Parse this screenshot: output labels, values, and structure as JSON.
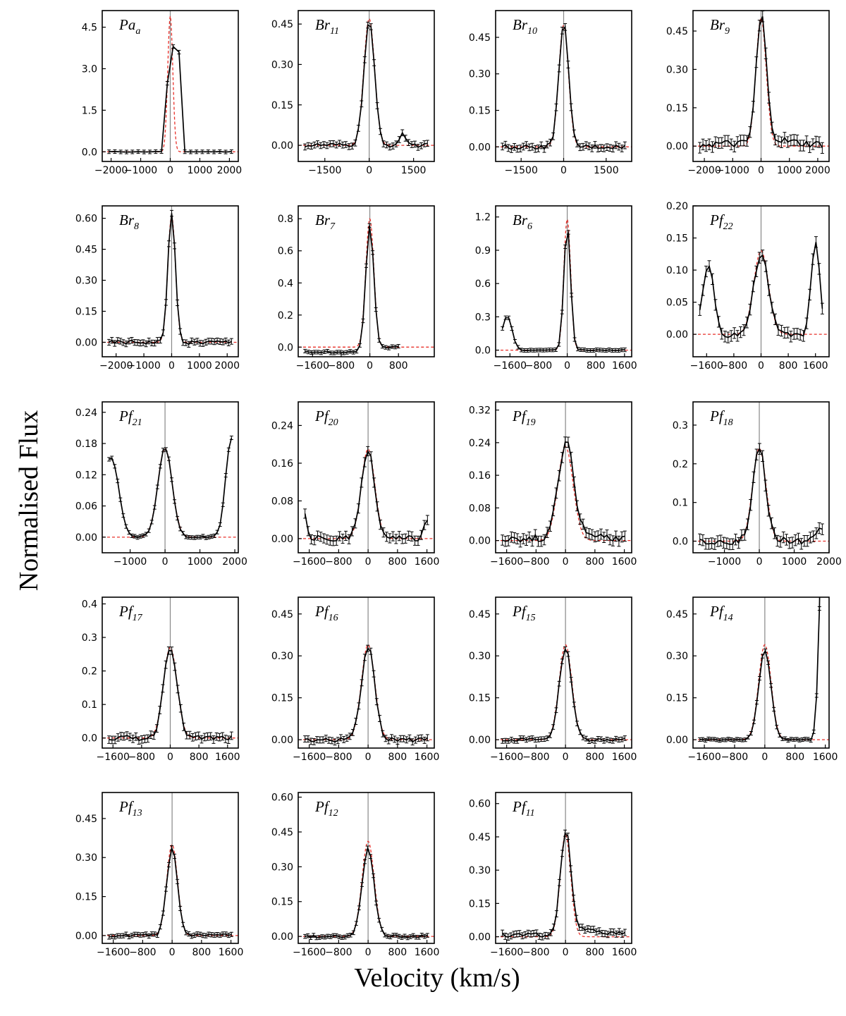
{
  "axis_labels": {
    "ylabel": "Normalised Flux",
    "xlabel": "Velocity (km/s)"
  },
  "colors": {
    "observed": "#000000",
    "fit": "#e8302a",
    "center_line": "#888888",
    "axes": "#000000"
  },
  "chart_data": [
    {
      "type": "line",
      "label_main": "Pa",
      "label_sub": "a",
      "xlim": [
        -2300,
        2300
      ],
      "ylim": [
        -0.35,
        5.1
      ],
      "xticks": [
        -2000,
        -1000,
        0,
        1000,
        2000
      ],
      "xtick_labels": [
        "−2000",
        "−1000",
        "0",
        "1000",
        "2000"
      ],
      "yticks": [
        0,
        1.5,
        3,
        4.5
      ],
      "ytick_labels": [
        "0.0",
        "1.5",
        "3.0",
        "4.5"
      ],
      "peak": 4.85,
      "fwhm": 200,
      "obs_peak": 3.8,
      "obs_mid": 3.6,
      "fit_peak": 4.9,
      "n": 22,
      "noise": 0.01,
      "series": [
        {
          "name": "Observed"
        },
        {
          "name": "Fit"
        }
      ]
    },
    {
      "type": "line",
      "label_main": "Br",
      "label_sub": "11",
      "xlim": [
        -2400,
        2200
      ],
      "ylim": [
        -0.06,
        0.5
      ],
      "xticks": [
        -1500,
        0,
        1500
      ],
      "xtick_labels": [
        "−1500",
        "0",
        "1500"
      ],
      "yticks": [
        0,
        0.15,
        0.3,
        0.45
      ],
      "ytick_labels": [
        "0.00",
        "0.15",
        "0.30",
        "0.45"
      ],
      "peak": 0.46,
      "fwhm": 420,
      "fit_peak": 0.47,
      "n": 40,
      "noise": 0.008,
      "bump": [
        1150,
        0.04
      ],
      "series": [
        {
          "name": "Observed"
        },
        {
          "name": "Fit"
        }
      ]
    },
    {
      "type": "line",
      "label_main": "Br",
      "label_sub": "10",
      "xlim": [
        -2400,
        2400
      ],
      "ylim": [
        -0.06,
        0.56
      ],
      "xticks": [
        -1500,
        0,
        1500
      ],
      "xtick_labels": [
        "−1500",
        "0",
        "1500"
      ],
      "yticks": [
        0,
        0.15,
        0.3,
        0.45
      ],
      "ytick_labels": [
        "0.00",
        "0.15",
        "0.30",
        "0.45"
      ],
      "peak": 0.51,
      "fwhm": 400,
      "fit_peak": 0.5,
      "n": 42,
      "noise": 0.01,
      "series": [
        {
          "name": "Observed"
        },
        {
          "name": "Fit"
        }
      ]
    },
    {
      "type": "line",
      "label_main": "Br",
      "label_sub": "9",
      "xlim": [
        -2400,
        2400
      ],
      "ylim": [
        -0.06,
        0.53
      ],
      "xticks": [
        -2000,
        -1000,
        0,
        1000,
        2000
      ],
      "xtick_labels": [
        "−2000",
        "−1000",
        "0",
        "1000",
        "2000"
      ],
      "yticks": [
        0,
        0.15,
        0.3,
        0.45
      ],
      "ytick_labels": [
        "0.00",
        "0.15",
        "0.30",
        "0.45"
      ],
      "peak": 0.48,
      "fwhm": 420,
      "fit_peak": 0.5,
      "n": 40,
      "noise": 0.015,
      "wing": [
        0.05,
        900
      ],
      "series": [
        {
          "name": "Observed"
        },
        {
          "name": "Fit"
        }
      ]
    },
    {
      "type": "line",
      "label_main": "Br",
      "label_sub": "8",
      "xlim": [
        -2500,
        2400
      ],
      "ylim": [
        -0.07,
        0.66
      ],
      "xticks": [
        -2000,
        -1000,
        0,
        1000,
        2000
      ],
      "xtick_labels": [
        "−2000",
        "−1000",
        "0",
        "1000",
        "2000"
      ],
      "yticks": [
        0,
        0.15,
        0.3,
        0.45,
        0.6
      ],
      "ytick_labels": [
        "0.00",
        "0.15",
        "0.30",
        "0.45",
        "0.60"
      ],
      "peak": 0.62,
      "fwhm": 320,
      "fit_peak": 0.61,
      "n": 44,
      "noise": 0.01,
      "series": [
        {
          "name": "Observed"
        },
        {
          "name": "Fit"
        }
      ]
    },
    {
      "type": "line",
      "label_main": "Br",
      "label_sub": "7",
      "xlim": [
        -2000,
        1800
      ],
      "ylim": [
        -0.06,
        0.88
      ],
      "xticks": [
        -1600,
        -800,
        0,
        800
      ],
      "xtick_labels": [
        "−1600",
        "−800",
        "0",
        "800"
      ],
      "yticks": [
        0,
        0.2,
        0.4,
        0.6,
        0.8
      ],
      "ytick_labels": [
        "0.0",
        "0.2",
        "0.4",
        "0.6",
        "0.8"
      ],
      "peak": 0.76,
      "fwhm": 260,
      "fit_peak": 0.8,
      "n": 30,
      "noise": 0.006,
      "xmax_obs": 800,
      "baseline": -0.03,
      "series": [
        {
          "name": "Observed"
        },
        {
          "name": "Fit"
        }
      ]
    },
    {
      "type": "line",
      "label_main": "Br",
      "label_sub": "6",
      "xlim": [
        -2000,
        1800
      ],
      "ylim": [
        -0.06,
        1.3
      ],
      "xticks": [
        -1600,
        -800,
        0,
        800,
        1600
      ],
      "xtick_labels": [
        "−1600",
        "−800",
        "0",
        "800",
        "1600"
      ],
      "yticks": [
        0,
        0.3,
        0.6,
        0.9,
        1.2
      ],
      "ytick_labels": [
        "0.0",
        "0.3",
        "0.6",
        "0.9",
        "1.2"
      ],
      "peak": 1.12,
      "fwhm": 220,
      "fit_peak": 1.18,
      "n": 40,
      "noise": 0.004,
      "side_peaks": [
        [
          -1680,
          0.31,
          320
        ]
      ],
      "series": [
        {
          "name": "Observed"
        },
        {
          "name": "Fit"
        }
      ]
    },
    {
      "type": "line",
      "label_main": "Pf",
      "label_sub": "22",
      "xlim": [
        -2000,
        2000
      ],
      "ylim": [
        -0.035,
        0.2
      ],
      "xticks": [
        -1600,
        -800,
        0,
        800,
        1600
      ],
      "xtick_labels": [
        "−1600",
        "−800",
        "0",
        "800",
        "1600"
      ],
      "yticks": [
        0,
        0.05,
        0.1,
        0.15,
        0.2
      ],
      "ytick_labels": [
        "0.00",
        "0.05",
        "0.10",
        "0.15",
        "0.20"
      ],
      "peak": 0.125,
      "fwhm": 500,
      "fit_peak": 0.13,
      "n": 40,
      "noise": 0.006,
      "side_peaks": [
        [
          -1550,
          0.11,
          380
        ],
        [
          1600,
          0.14,
          300
        ]
      ],
      "series": [
        {
          "name": "Observed"
        },
        {
          "name": "Fit"
        }
      ]
    },
    {
      "type": "line",
      "label_main": "Pf",
      "label_sub": "21",
      "xlim": [
        -1800,
        2100
      ],
      "ylim": [
        -0.03,
        0.26
      ],
      "xticks": [
        -1000,
        0,
        1000,
        2000
      ],
      "xtick_labels": [
        "−1000",
        "0",
        "1000",
        "2000"
      ],
      "yticks": [
        0,
        0.06,
        0.12,
        0.18,
        0.24
      ],
      "ytick_labels": [
        "0.00",
        "0.06",
        "0.12",
        "0.18",
        "0.24"
      ],
      "peak": 0.172,
      "fwhm": 480,
      "fit_peak": 0.17,
      "n": 44,
      "noise": 0.002,
      "side_peaks": [
        [
          -1550,
          0.155,
          520
        ],
        [
          1900,
          0.19,
          380
        ]
      ],
      "series": [
        {
          "name": "Observed"
        },
        {
          "name": "Fit"
        }
      ]
    },
    {
      "type": "line",
      "label_main": "Pf",
      "label_sub": "20",
      "xlim": [
        -1900,
        1800
      ],
      "ylim": [
        -0.03,
        0.29
      ],
      "xticks": [
        -1600,
        -800,
        0,
        800,
        1600
      ],
      "xtick_labels": [
        "−1600",
        "−800",
        "0",
        "800",
        "1600"
      ],
      "yticks": [
        0,
        0.08,
        0.16,
        0.24
      ],
      "ytick_labels": [
        "0.00",
        "0.08",
        "0.16",
        "0.24"
      ],
      "peak": 0.185,
      "fwhm": 420,
      "fit_peak": 0.19,
      "n": 40,
      "noise": 0.007,
      "side_peaks": [
        [
          -1900,
          0.14,
          300
        ]
      ],
      "bump": [
        1650,
        0.04
      ],
      "series": [
        {
          "name": "Observed"
        },
        {
          "name": "Fit"
        }
      ]
    },
    {
      "type": "line",
      "label_main": "Pf",
      "label_sub": "19",
      "xlim": [
        -1900,
        1800
      ],
      "ylim": [
        -0.03,
        0.34
      ],
      "xticks": [
        -1600,
        -800,
        0,
        800,
        1600
      ],
      "xtick_labels": [
        "−1600",
        "−800",
        "0",
        "800",
        "1600"
      ],
      "yticks": [
        0,
        0.08,
        0.16,
        0.24,
        0.32
      ],
      "ytick_labels": [
        "0.00",
        "0.08",
        "0.16",
        "0.24",
        "0.32"
      ],
      "peak": 0.228,
      "fwhm": 480,
      "fit_peak": 0.23,
      "n": 42,
      "noise": 0.009,
      "wing": [
        0.035,
        700
      ],
      "series": [
        {
          "name": "Observed"
        },
        {
          "name": "Fit"
        }
      ]
    },
    {
      "type": "line",
      "label_main": "Pf",
      "label_sub": "18",
      "xlim": [
        -1900,
        2000
      ],
      "ylim": [
        -0.03,
        0.36
      ],
      "xticks": [
        -1000,
        0,
        1000,
        2000
      ],
      "xtick_labels": [
        "−1000",
        "0",
        "1000",
        "2000"
      ],
      "yticks": [
        0,
        0.1,
        0.2,
        0.3
      ],
      "ytick_labels": [
        "0.0",
        "0.1",
        "0.2",
        "0.3"
      ],
      "peak": 0.238,
      "fwhm": 440,
      "fit_peak": 0.24,
      "n": 42,
      "noise": 0.01,
      "bump": [
        1750,
        0.025
      ],
      "series": [
        {
          "name": "Observed"
        },
        {
          "name": "Fit"
        }
      ]
    },
    {
      "type": "line",
      "label_main": "Pf",
      "label_sub": "17",
      "xlim": [
        -1900,
        1900
      ],
      "ylim": [
        -0.03,
        0.42
      ],
      "xticks": [
        -1600,
        -800,
        0,
        800,
        1600
      ],
      "xtick_labels": [
        "−1600",
        "−800",
        "0",
        "800",
        "1600"
      ],
      "yticks": [
        0,
        0.1,
        0.2,
        0.3,
        0.4
      ],
      "ytick_labels": [
        "0.0",
        "0.1",
        "0.2",
        "0.3",
        "0.4"
      ],
      "peak": 0.275,
      "fwhm": 440,
      "fit_peak": 0.27,
      "n": 42,
      "noise": 0.008,
      "series": [
        {
          "name": "Observed"
        },
        {
          "name": "Fit"
        }
      ]
    },
    {
      "type": "line",
      "label_main": "Pf",
      "label_sub": "16",
      "xlim": [
        -1900,
        1800
      ],
      "ylim": [
        -0.03,
        0.51
      ],
      "xticks": [
        -1600,
        -800,
        0,
        800,
        1600
      ],
      "xtick_labels": [
        "−1600",
        "−800",
        "0",
        "800",
        "1600"
      ],
      "yticks": [
        0,
        0.15,
        0.3,
        0.45
      ],
      "ytick_labels": [
        "0.00",
        "0.15",
        "0.30",
        "0.45"
      ],
      "peak": 0.335,
      "fwhm": 420,
      "fit_peak": 0.34,
      "n": 42,
      "noise": 0.008,
      "series": [
        {
          "name": "Observed"
        },
        {
          "name": "Fit"
        }
      ]
    },
    {
      "type": "line",
      "label_main": "Pf",
      "label_sub": "15",
      "xlim": [
        -1900,
        1800
      ],
      "ylim": [
        -0.03,
        0.51
      ],
      "xticks": [
        -1600,
        -800,
        0,
        800,
        1600
      ],
      "xtick_labels": [
        "−1600",
        "−800",
        "0",
        "800",
        "1600"
      ],
      "yticks": [
        0,
        0.15,
        0.3,
        0.45
      ],
      "ytick_labels": [
        "0.00",
        "0.15",
        "0.30",
        "0.45"
      ],
      "peak": 0.33,
      "fwhm": 400,
      "fit_peak": 0.34,
      "n": 42,
      "noise": 0.006,
      "series": [
        {
          "name": "Observed"
        },
        {
          "name": "Fit"
        }
      ]
    },
    {
      "type": "line",
      "label_main": "Pf",
      "label_sub": "14",
      "xlim": [
        -1900,
        1700
      ],
      "ylim": [
        -0.03,
        0.51
      ],
      "xticks": [
        -1600,
        -800,
        0,
        800,
        1600
      ],
      "xtick_labels": [
        "−1600",
        "−800",
        "0",
        "800",
        "1600"
      ],
      "yticks": [
        0,
        0.15,
        0.3,
        0.45
      ],
      "ytick_labels": [
        "0.00",
        "0.15",
        "0.30",
        "0.45"
      ],
      "peak": 0.32,
      "fwhm": 380,
      "fit_peak": 0.34,
      "n": 44,
      "noise": 0.003,
      "rise": [
        1200,
        1450
      ],
      "series": [
        {
          "name": "Observed"
        },
        {
          "name": "Fit"
        }
      ]
    },
    {
      "type": "line",
      "label_main": "Pf",
      "label_sub": "13",
      "xlim": [
        -1900,
        1800
      ],
      "ylim": [
        -0.03,
        0.55
      ],
      "xticks": [
        -1600,
        -800,
        0,
        800,
        1600
      ],
      "xtick_labels": [
        "−1600",
        "−800",
        "0",
        "800",
        "1600"
      ],
      "yticks": [
        0,
        0.15,
        0.3,
        0.45
      ],
      "ytick_labels": [
        "0.00",
        "0.15",
        "0.30",
        "0.45"
      ],
      "peak": 0.335,
      "fwhm": 340,
      "fit_peak": 0.35,
      "n": 44,
      "noise": 0.006,
      "series": [
        {
          "name": "Observed"
        },
        {
          "name": "Fit"
        }
      ]
    },
    {
      "type": "line",
      "label_main": "Pf",
      "label_sub": "12",
      "xlim": [
        -1900,
        1800
      ],
      "ylim": [
        -0.03,
        0.62
      ],
      "xticks": [
        -1600,
        -800,
        0,
        800,
        1600
      ],
      "xtick_labels": [
        "−1600",
        "−800",
        "0",
        "800",
        "1600"
      ],
      "yticks": [
        0,
        0.15,
        0.3,
        0.45,
        0.6
      ],
      "ytick_labels": [
        "0.00",
        "0.15",
        "0.30",
        "0.45",
        "0.60"
      ],
      "peak": 0.38,
      "fwhm": 380,
      "fit_peak": 0.41,
      "n": 44,
      "noise": 0.006,
      "series": [
        {
          "name": "Observed"
        },
        {
          "name": "Fit"
        }
      ]
    },
    {
      "type": "line",
      "label_main": "Pf",
      "label_sub": "11",
      "xlim": [
        -1900,
        1800
      ],
      "ylim": [
        -0.03,
        0.65
      ],
      "xticks": [
        -1600,
        -800,
        0,
        800,
        1600
      ],
      "xtick_labels": [
        "−1600",
        "−800",
        "0",
        "800",
        "1600"
      ],
      "yticks": [
        0,
        0.15,
        0.3,
        0.45,
        0.6
      ],
      "ytick_labels": [
        "0.00",
        "0.15",
        "0.30",
        "0.45",
        "0.60"
      ],
      "peak": 0.46,
      "fwhm": 330,
      "fit_peak": 0.46,
      "n": 44,
      "noise": 0.01,
      "wing": [
        0.045,
        1200
      ],
      "series": [
        {
          "name": "Observed"
        },
        {
          "name": "Fit"
        }
      ]
    }
  ]
}
